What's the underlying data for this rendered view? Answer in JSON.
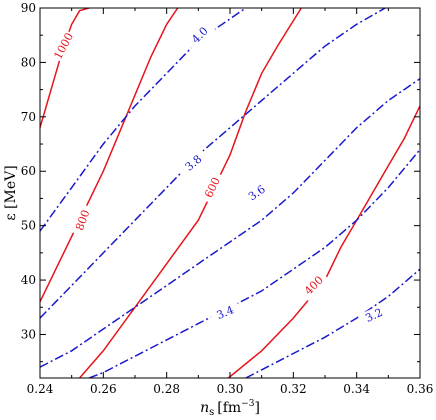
{
  "chart_data": {
    "type": "line",
    "title": "",
    "xlabel": "n_s [fm^-3]",
    "xlabel_main": "n",
    "xlabel_sub": "s",
    "xlabel_unit_open": "[fm",
    "xlabel_unit_exp": "−3",
    "xlabel_unit_close": "]",
    "ylabel": "ε [MeV]",
    "xlim": [
      0.24,
      0.36
    ],
    "ylim": [
      22,
      90
    ],
    "xticks": [
      0.24,
      0.26,
      0.28,
      0.3,
      0.32,
      0.34,
      0.36
    ],
    "xtick_labels": [
      "0.24",
      "0.26",
      "0.28",
      "0.30",
      "0.32",
      "0.34",
      "0.36"
    ],
    "yticks": [
      30,
      40,
      50,
      60,
      70,
      80,
      90
    ],
    "ytick_labels": [
      "30",
      "40",
      "50",
      "60",
      "70",
      "80",
      "90"
    ],
    "grid": false,
    "colors": {
      "red_series": "#e8141b",
      "blue_series": "#1a1acc"
    },
    "series": [
      {
        "group": "red",
        "label": "1000",
        "label_x": 0.2475,
        "label_y": 83,
        "label_angle": -62,
        "x": [
          0.24,
          0.2425,
          0.245,
          0.2475,
          0.25,
          0.2525,
          0.2555
        ],
        "y": [
          68,
          73,
          78,
          83,
          87,
          89.5,
          90
        ]
      },
      {
        "group": "red",
        "label": "800",
        "label_x": 0.2535,
        "label_y": 51,
        "label_angle": -70,
        "x": [
          0.24,
          0.245,
          0.25,
          0.255,
          0.26,
          0.265,
          0.27,
          0.275,
          0.28,
          0.2835
        ],
        "y": [
          36,
          42,
          48,
          54,
          60,
          67,
          74,
          81,
          87,
          90
        ]
      },
      {
        "group": "red",
        "label": "600",
        "label_x": 0.2945,
        "label_y": 57,
        "label_angle": -65,
        "x": [
          0.2525,
          0.26,
          0.27,
          0.28,
          0.29,
          0.3,
          0.305,
          0.31,
          0.315,
          0.3225
        ],
        "y": [
          22,
          27,
          35,
          43,
          51,
          63,
          71,
          78,
          83,
          90
        ]
      },
      {
        "group": "red",
        "label": "400",
        "label_x": 0.3265,
        "label_y": 39,
        "label_angle": -45,
        "x": [
          0.2995,
          0.31,
          0.32,
          0.33,
          0.335,
          0.34,
          0.345,
          0.35,
          0.355,
          0.36
        ],
        "y": [
          22,
          27,
          33,
          40,
          46,
          51,
          56,
          61,
          66,
          72
        ]
      },
      {
        "group": "blue",
        "label": "4.0",
        "label_x": 0.2905,
        "label_y": 85,
        "label_angle": -45,
        "x": [
          0.24,
          0.245,
          0.25,
          0.26,
          0.27,
          0.28,
          0.29,
          0.3,
          0.305
        ],
        "y": [
          49,
          53,
          57,
          65,
          72,
          78,
          84,
          88,
          90
        ]
      },
      {
        "group": "blue",
        "label": "3.8",
        "label_x": 0.2885,
        "label_y": 61.5,
        "label_angle": -40,
        "x": [
          0.24,
          0.245,
          0.25,
          0.26,
          0.27,
          0.28,
          0.29,
          0.3,
          0.31,
          0.32,
          0.33,
          0.34,
          0.349
        ],
        "y": [
          33,
          36,
          39,
          45,
          51,
          57,
          63,
          68,
          73,
          78,
          83,
          87,
          90
        ]
      },
      {
        "group": "blue",
        "label": "3.6",
        "label_x": 0.3085,
        "label_y": 56,
        "label_angle": -35,
        "x": [
          0.24,
          0.25,
          0.26,
          0.27,
          0.28,
          0.29,
          0.3,
          0.31,
          0.32,
          0.33,
          0.34,
          0.35,
          0.36
        ],
        "y": [
          24,
          27,
          31,
          35,
          39,
          43,
          47,
          51,
          56,
          62,
          68,
          73,
          77
        ]
      },
      {
        "group": "blue",
        "label": "3.4",
        "label_x": 0.2985,
        "label_y": 34,
        "label_angle": -22,
        "x": [
          0.2555,
          0.26,
          0.27,
          0.28,
          0.29,
          0.3,
          0.31,
          0.32,
          0.33,
          0.34,
          0.35,
          0.36
        ],
        "y": [
          22,
          23,
          26,
          29,
          32,
          35,
          38,
          42,
          46,
          51,
          57,
          64
        ]
      },
      {
        "group": "blue",
        "label": "3.2",
        "label_x": 0.3455,
        "label_y": 33.5,
        "label_angle": -25,
        "x": [
          0.305,
          0.31,
          0.32,
          0.33,
          0.34,
          0.35,
          0.36
        ],
        "y": [
          22,
          23.5,
          26.5,
          29.5,
          33,
          37,
          42
        ]
      }
    ]
  }
}
